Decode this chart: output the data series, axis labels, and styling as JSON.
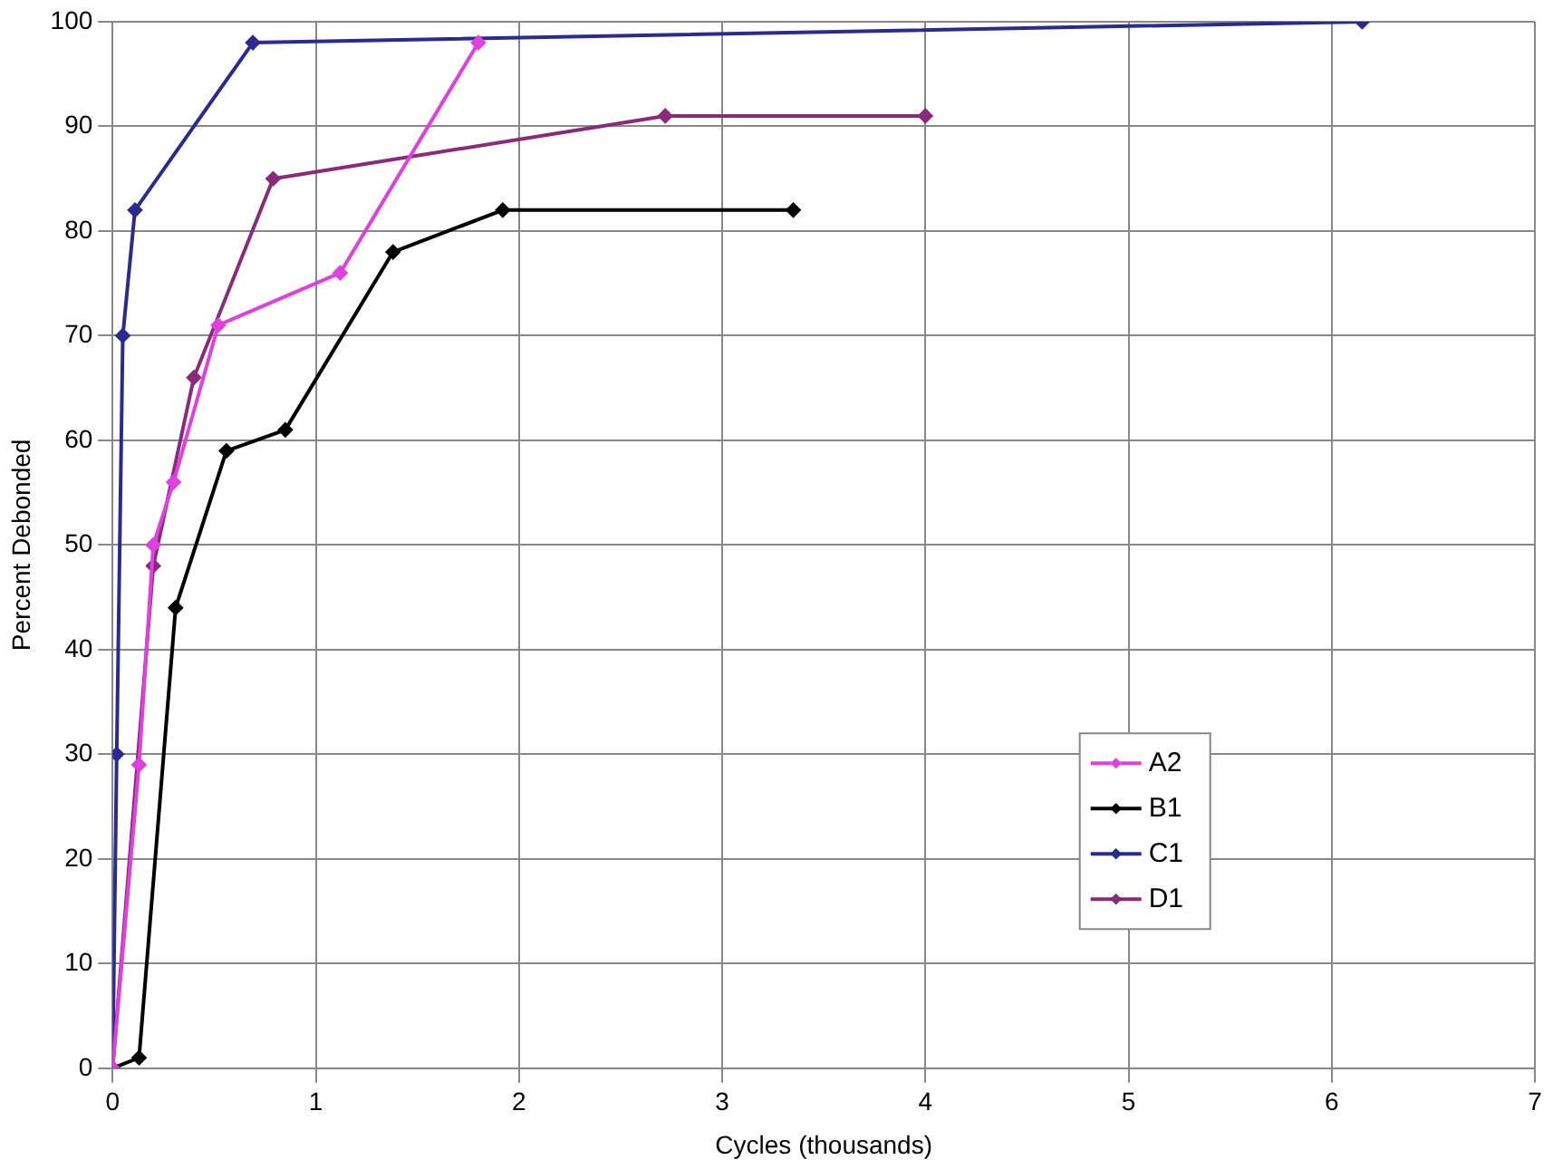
{
  "chart_data": {
    "type": "line",
    "xlabel": "Cycles (thousands)",
    "ylabel": "Percent Debonded",
    "xlim": [
      0,
      7
    ],
    "xticks": [
      0,
      1,
      2,
      3,
      4,
      5,
      6,
      7
    ],
    "ylim": [
      0,
      100
    ],
    "yticks": [
      0,
      10,
      20,
      30,
      40,
      50,
      60,
      70,
      80,
      90,
      100
    ],
    "grid": true,
    "legend": "bottom right",
    "marker": "diamond",
    "line_style": "solid",
    "series": [
      {
        "name": "A2",
        "color": "#e040e0",
        "x": [
          0,
          0.13,
          0.2,
          0.3,
          0.52,
          1.12,
          1.8
        ],
        "values": [
          0,
          29,
          50,
          56,
          71,
          76,
          98
        ]
      },
      {
        "name": "B1",
        "color": "#000000",
        "x": [
          0,
          0.13,
          0.31,
          0.56,
          0.85,
          1.38,
          1.92,
          3.35
        ],
        "values": [
          0,
          1,
          44,
          59,
          61,
          78,
          82,
          82
        ]
      },
      {
        "name": "C1",
        "color": "#2a2a90",
        "x": [
          0,
          0.02,
          0.05,
          0.11,
          0.69,
          6.15
        ],
        "values": [
          0,
          30,
          70,
          82,
          98,
          100
        ]
      },
      {
        "name": "D1",
        "color": "#8a2a7a",
        "x": [
          0,
          0.2,
          0.4,
          0.79,
          2.72,
          4.0
        ],
        "values": [
          0,
          48,
          66,
          85,
          91,
          91
        ]
      }
    ]
  }
}
